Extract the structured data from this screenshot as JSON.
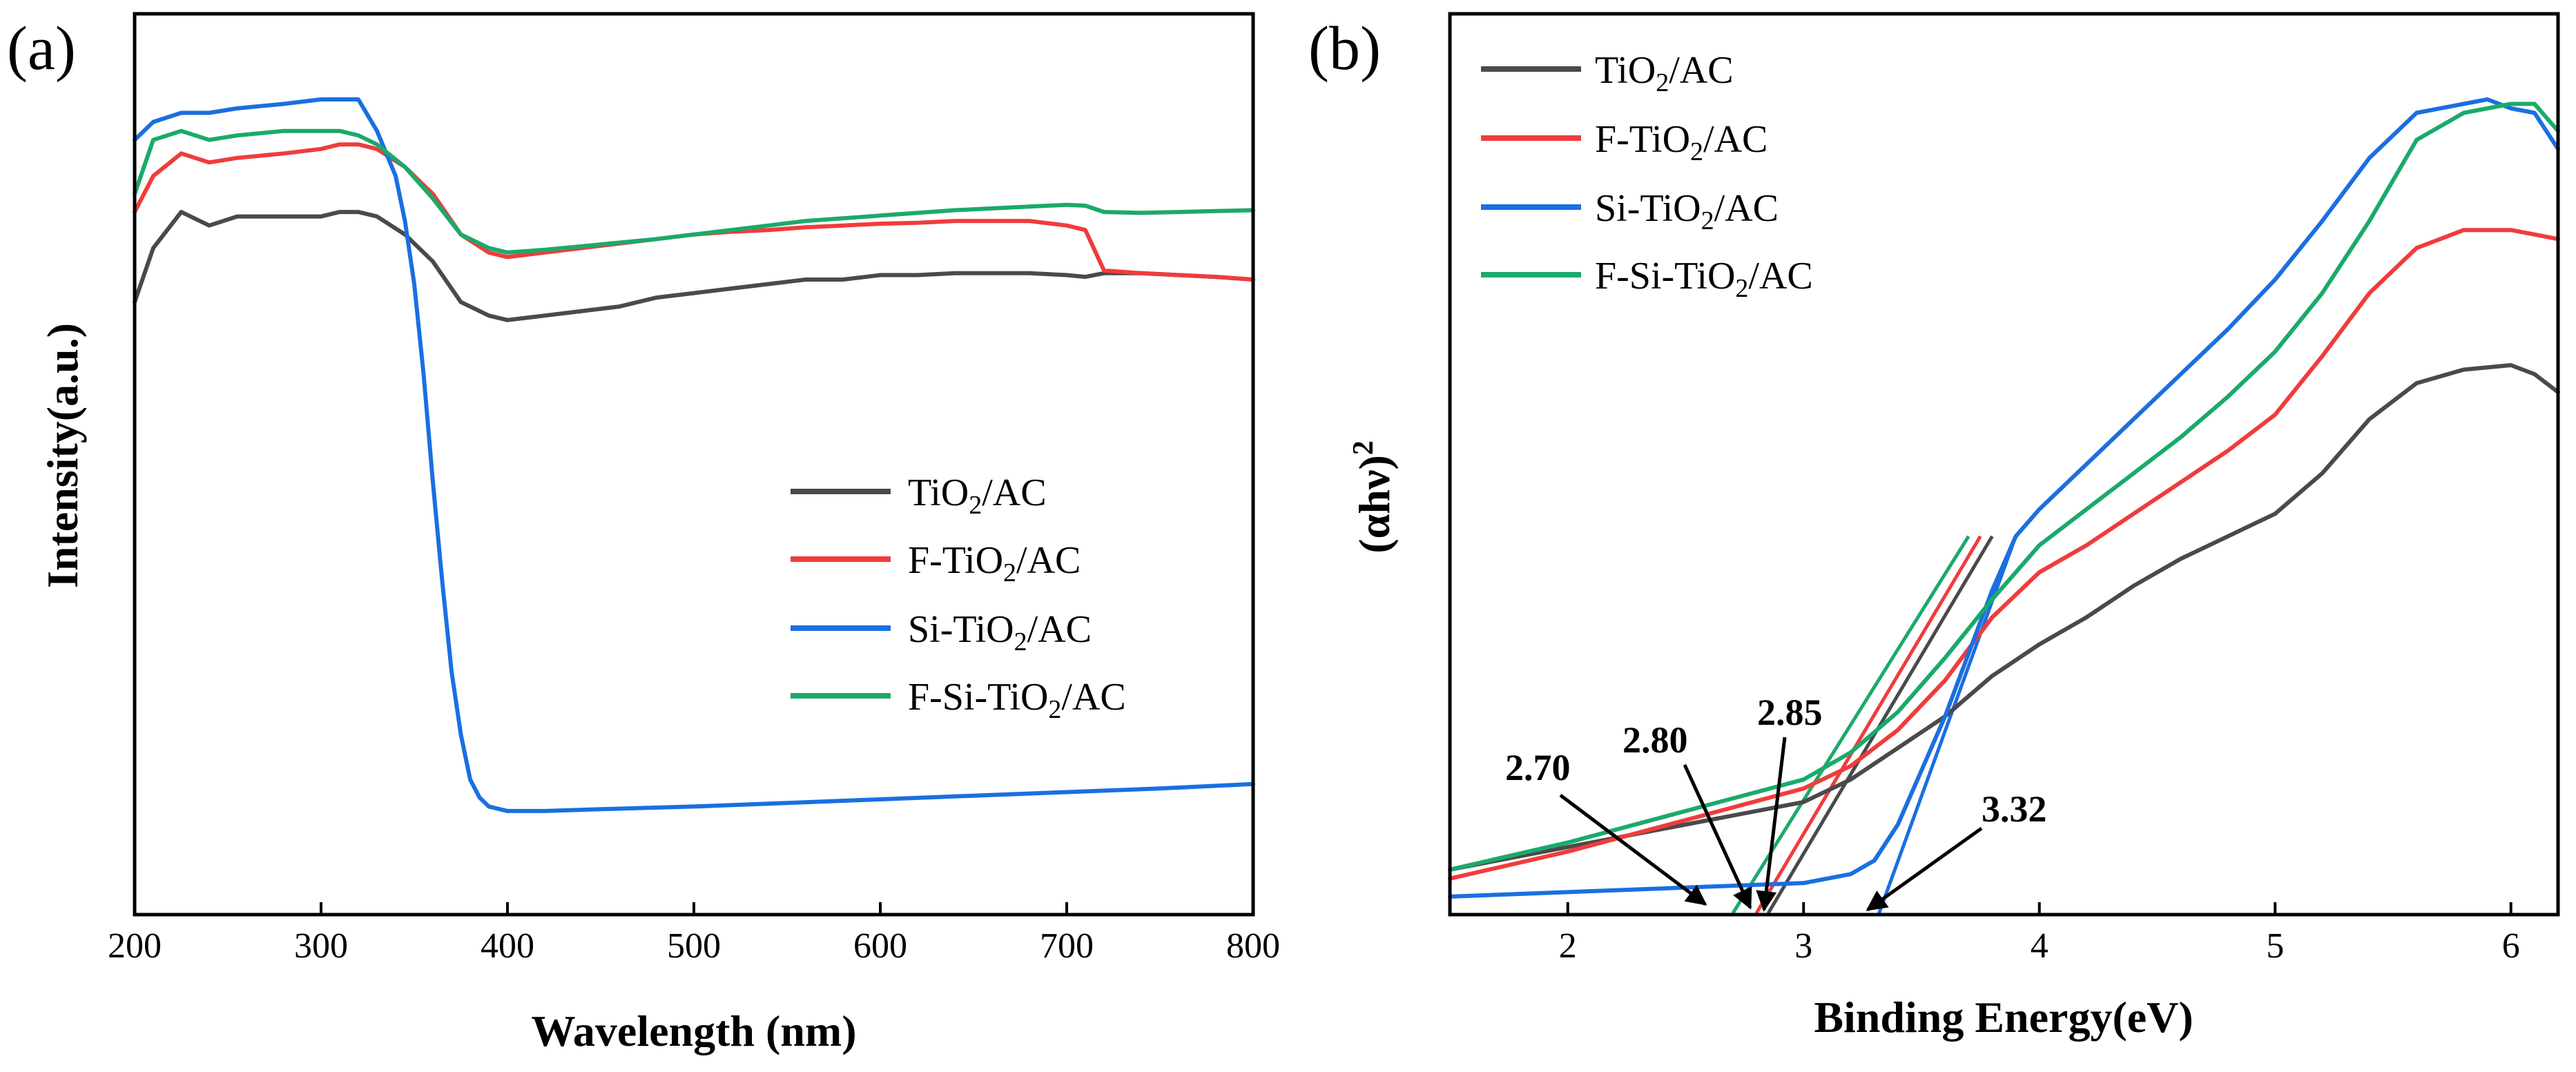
{
  "colors": {
    "black": "#4a4a4a",
    "red": "#f03c3c",
    "blue": "#1a6fe0",
    "green": "#1aaa6a"
  },
  "chart_data": [
    {
      "panel_label": "(a)",
      "type": "line",
      "xlabel": "Wavelength (nm)",
      "ylabel": "Intensity(a.u.)",
      "xlim": [
        200,
        800
      ],
      "ylim": [
        0,
        1
      ],
      "xticks": [
        200,
        300,
        400,
        500,
        600,
        700,
        800
      ],
      "xtick_labels": [
        "200",
        "300",
        "400",
        "500",
        "600",
        "700",
        "800"
      ],
      "legend_position": "center-right",
      "series": [
        {
          "name": "TiO2/AC",
          "label_prefix": "TiO",
          "label_sub": "2",
          "label_suffix": "/AC",
          "color": "#4a4a4a",
          "x": [
            200,
            210,
            225,
            240,
            255,
            280,
            300,
            310,
            320,
            330,
            345,
            360,
            375,
            390,
            400,
            420,
            440,
            460,
            480,
            500,
            520,
            540,
            560,
            580,
            600,
            620,
            640,
            660,
            680,
            700,
            710,
            720,
            740,
            760,
            780,
            800
          ],
          "y": [
            0.68,
            0.74,
            0.78,
            0.765,
            0.775,
            0.775,
            0.775,
            0.78,
            0.78,
            0.775,
            0.755,
            0.725,
            0.68,
            0.665,
            0.66,
            0.665,
            0.67,
            0.675,
            0.685,
            0.69,
            0.695,
            0.7,
            0.705,
            0.705,
            0.71,
            0.71,
            0.712,
            0.712,
            0.712,
            0.71,
            0.708,
            0.712,
            0.712,
            0.71,
            0.708,
            0.705
          ]
        },
        {
          "name": "F-TiO2/AC",
          "label_prefix": "F-TiO",
          "label_sub": "2",
          "label_suffix": "/AC",
          "color": "#f03c3c",
          "x": [
            200,
            210,
            225,
            240,
            255,
            280,
            300,
            310,
            320,
            330,
            345,
            360,
            375,
            390,
            400,
            420,
            440,
            460,
            480,
            500,
            520,
            540,
            560,
            580,
            600,
            620,
            640,
            660,
            680,
            700,
            710,
            720,
            740,
            760,
            780,
            800
          ],
          "y": [
            0.78,
            0.82,
            0.845,
            0.835,
            0.84,
            0.845,
            0.85,
            0.855,
            0.855,
            0.85,
            0.83,
            0.8,
            0.755,
            0.735,
            0.73,
            0.735,
            0.74,
            0.745,
            0.75,
            0.755,
            0.758,
            0.76,
            0.763,
            0.765,
            0.767,
            0.768,
            0.77,
            0.77,
            0.77,
            0.765,
            0.76,
            0.715,
            0.712,
            0.71,
            0.708,
            0.705
          ]
        },
        {
          "name": "Si-TiO2/AC",
          "label_prefix": "Si-TiO",
          "label_sub": "2",
          "label_suffix": "/AC",
          "color": "#1a6fe0",
          "x": [
            200,
            210,
            225,
            240,
            255,
            280,
            300,
            310,
            320,
            330,
            340,
            345,
            350,
            355,
            360,
            365,
            370,
            375,
            380,
            385,
            390,
            400,
            420,
            450,
            500,
            550,
            600,
            650,
            700,
            750,
            800
          ],
          "y": [
            0.86,
            0.88,
            0.89,
            0.89,
            0.895,
            0.9,
            0.905,
            0.905,
            0.905,
            0.87,
            0.82,
            0.77,
            0.7,
            0.6,
            0.48,
            0.37,
            0.27,
            0.2,
            0.15,
            0.13,
            0.12,
            0.115,
            0.115,
            0.117,
            0.12,
            0.124,
            0.128,
            0.132,
            0.136,
            0.14,
            0.145
          ]
        },
        {
          "name": "F-Si-TiO2/AC",
          "label_prefix": "F-Si-TiO",
          "label_sub": "2",
          "label_suffix": "/AC",
          "color": "#1aaa6a",
          "x": [
            200,
            210,
            225,
            240,
            255,
            280,
            300,
            310,
            320,
            330,
            345,
            360,
            375,
            390,
            400,
            420,
            440,
            460,
            480,
            500,
            520,
            540,
            560,
            580,
            600,
            620,
            640,
            660,
            680,
            700,
            710,
            720,
            740,
            760,
            780,
            800
          ],
          "y": [
            0.8,
            0.86,
            0.87,
            0.86,
            0.865,
            0.87,
            0.87,
            0.87,
            0.865,
            0.855,
            0.83,
            0.795,
            0.755,
            0.74,
            0.735,
            0.738,
            0.742,
            0.746,
            0.75,
            0.755,
            0.76,
            0.765,
            0.77,
            0.773,
            0.776,
            0.779,
            0.782,
            0.784,
            0.786,
            0.788,
            0.787,
            0.78,
            0.779,
            0.78,
            0.781,
            0.782
          ]
        }
      ]
    },
    {
      "panel_label": "(b)",
      "type": "line",
      "xlabel": "Binding Energy(eV)",
      "ylabel": "(αhν)²",
      "ylabel_main": "(αhν)",
      "ylabel_sup": "2",
      "xlim": [
        1.5,
        6.2
      ],
      "ylim": [
        0,
        1
      ],
      "xticks": [
        2,
        3,
        4,
        5,
        6
      ],
      "xtick_labels": [
        "2",
        "3",
        "4",
        "5",
        "6"
      ],
      "legend_position": "top-left",
      "series": [
        {
          "name": "TiO2/AC",
          "label_prefix": "TiO",
          "label_sub": "2",
          "label_suffix": "/AC",
          "color": "#4a4a4a",
          "x": [
            1.5,
            2.0,
            2.5,
            3.0,
            3.2,
            3.4,
            3.6,
            3.8,
            4.0,
            4.2,
            4.4,
            4.6,
            4.8,
            5.0,
            5.2,
            5.4,
            5.6,
            5.8,
            6.0,
            6.1,
            6.2
          ],
          "y": [
            0.05,
            0.075,
            0.1,
            0.125,
            0.15,
            0.185,
            0.22,
            0.265,
            0.3,
            0.33,
            0.365,
            0.395,
            0.42,
            0.445,
            0.49,
            0.55,
            0.59,
            0.605,
            0.61,
            0.6,
            0.58
          ]
        },
        {
          "name": "F-TiO2/AC",
          "label_prefix": "F-TiO",
          "label_sub": "2",
          "label_suffix": "/AC",
          "color": "#f03c3c",
          "x": [
            1.5,
            2.0,
            2.5,
            3.0,
            3.2,
            3.4,
            3.6,
            3.8,
            4.0,
            4.2,
            4.4,
            4.6,
            4.8,
            5.0,
            5.2,
            5.4,
            5.6,
            5.8,
            6.0,
            6.1,
            6.2
          ],
          "y": [
            0.04,
            0.07,
            0.105,
            0.14,
            0.165,
            0.205,
            0.26,
            0.33,
            0.38,
            0.41,
            0.445,
            0.48,
            0.515,
            0.555,
            0.62,
            0.69,
            0.74,
            0.76,
            0.76,
            0.755,
            0.75
          ]
        },
        {
          "name": "Si-TiO2/AC",
          "label_prefix": "Si-TiO",
          "label_sub": "2",
          "label_suffix": "/AC",
          "color": "#1a6fe0",
          "x": [
            1.5,
            2.0,
            2.5,
            3.0,
            3.2,
            3.3,
            3.4,
            3.5,
            3.6,
            3.7,
            3.8,
            3.9,
            4.0,
            4.2,
            4.4,
            4.6,
            4.8,
            5.0,
            5.2,
            5.4,
            5.6,
            5.8,
            5.9,
            6.0,
            6.1,
            6.2
          ],
          "y": [
            0.02,
            0.025,
            0.03,
            0.035,
            0.045,
            0.06,
            0.1,
            0.16,
            0.22,
            0.29,
            0.36,
            0.42,
            0.45,
            0.5,
            0.55,
            0.6,
            0.65,
            0.705,
            0.77,
            0.84,
            0.89,
            0.9,
            0.905,
            0.895,
            0.89,
            0.85
          ]
        },
        {
          "name": "F-Si-TiO2/AC",
          "label_prefix": "F-Si-TiO",
          "label_sub": "2",
          "label_suffix": "/AC",
          "color": "#1aaa6a",
          "x": [
            1.5,
            2.0,
            2.5,
            3.0,
            3.2,
            3.4,
            3.6,
            3.8,
            4.0,
            4.2,
            4.4,
            4.6,
            4.8,
            5.0,
            5.2,
            5.4,
            5.6,
            5.8,
            6.0,
            6.1,
            6.2
          ],
          "y": [
            0.05,
            0.08,
            0.115,
            0.15,
            0.18,
            0.225,
            0.285,
            0.35,
            0.41,
            0.45,
            0.49,
            0.53,
            0.575,
            0.625,
            0.69,
            0.77,
            0.86,
            0.89,
            0.9,
            0.9,
            0.87
          ]
        }
      ],
      "fit_lines": [
        {
          "name": "TiO2/AC fit",
          "color": "#4a4a4a",
          "x": [
            2.85,
            3.8
          ]
        },
        {
          "name": "F-TiO2/AC fit",
          "color": "#f03c3c",
          "x": [
            2.8,
            3.75
          ]
        },
        {
          "name": "Si-TiO2/AC fit",
          "color": "#1a6fe0",
          "x": [
            3.32,
            3.9
          ]
        },
        {
          "name": "F-Si-TiO2/AC fit",
          "color": "#1aaa6a",
          "x": [
            2.7,
            3.7
          ]
        }
      ],
      "annotations": [
        "2.70",
        "2.80",
        "2.85",
        "3.32"
      ]
    }
  ]
}
